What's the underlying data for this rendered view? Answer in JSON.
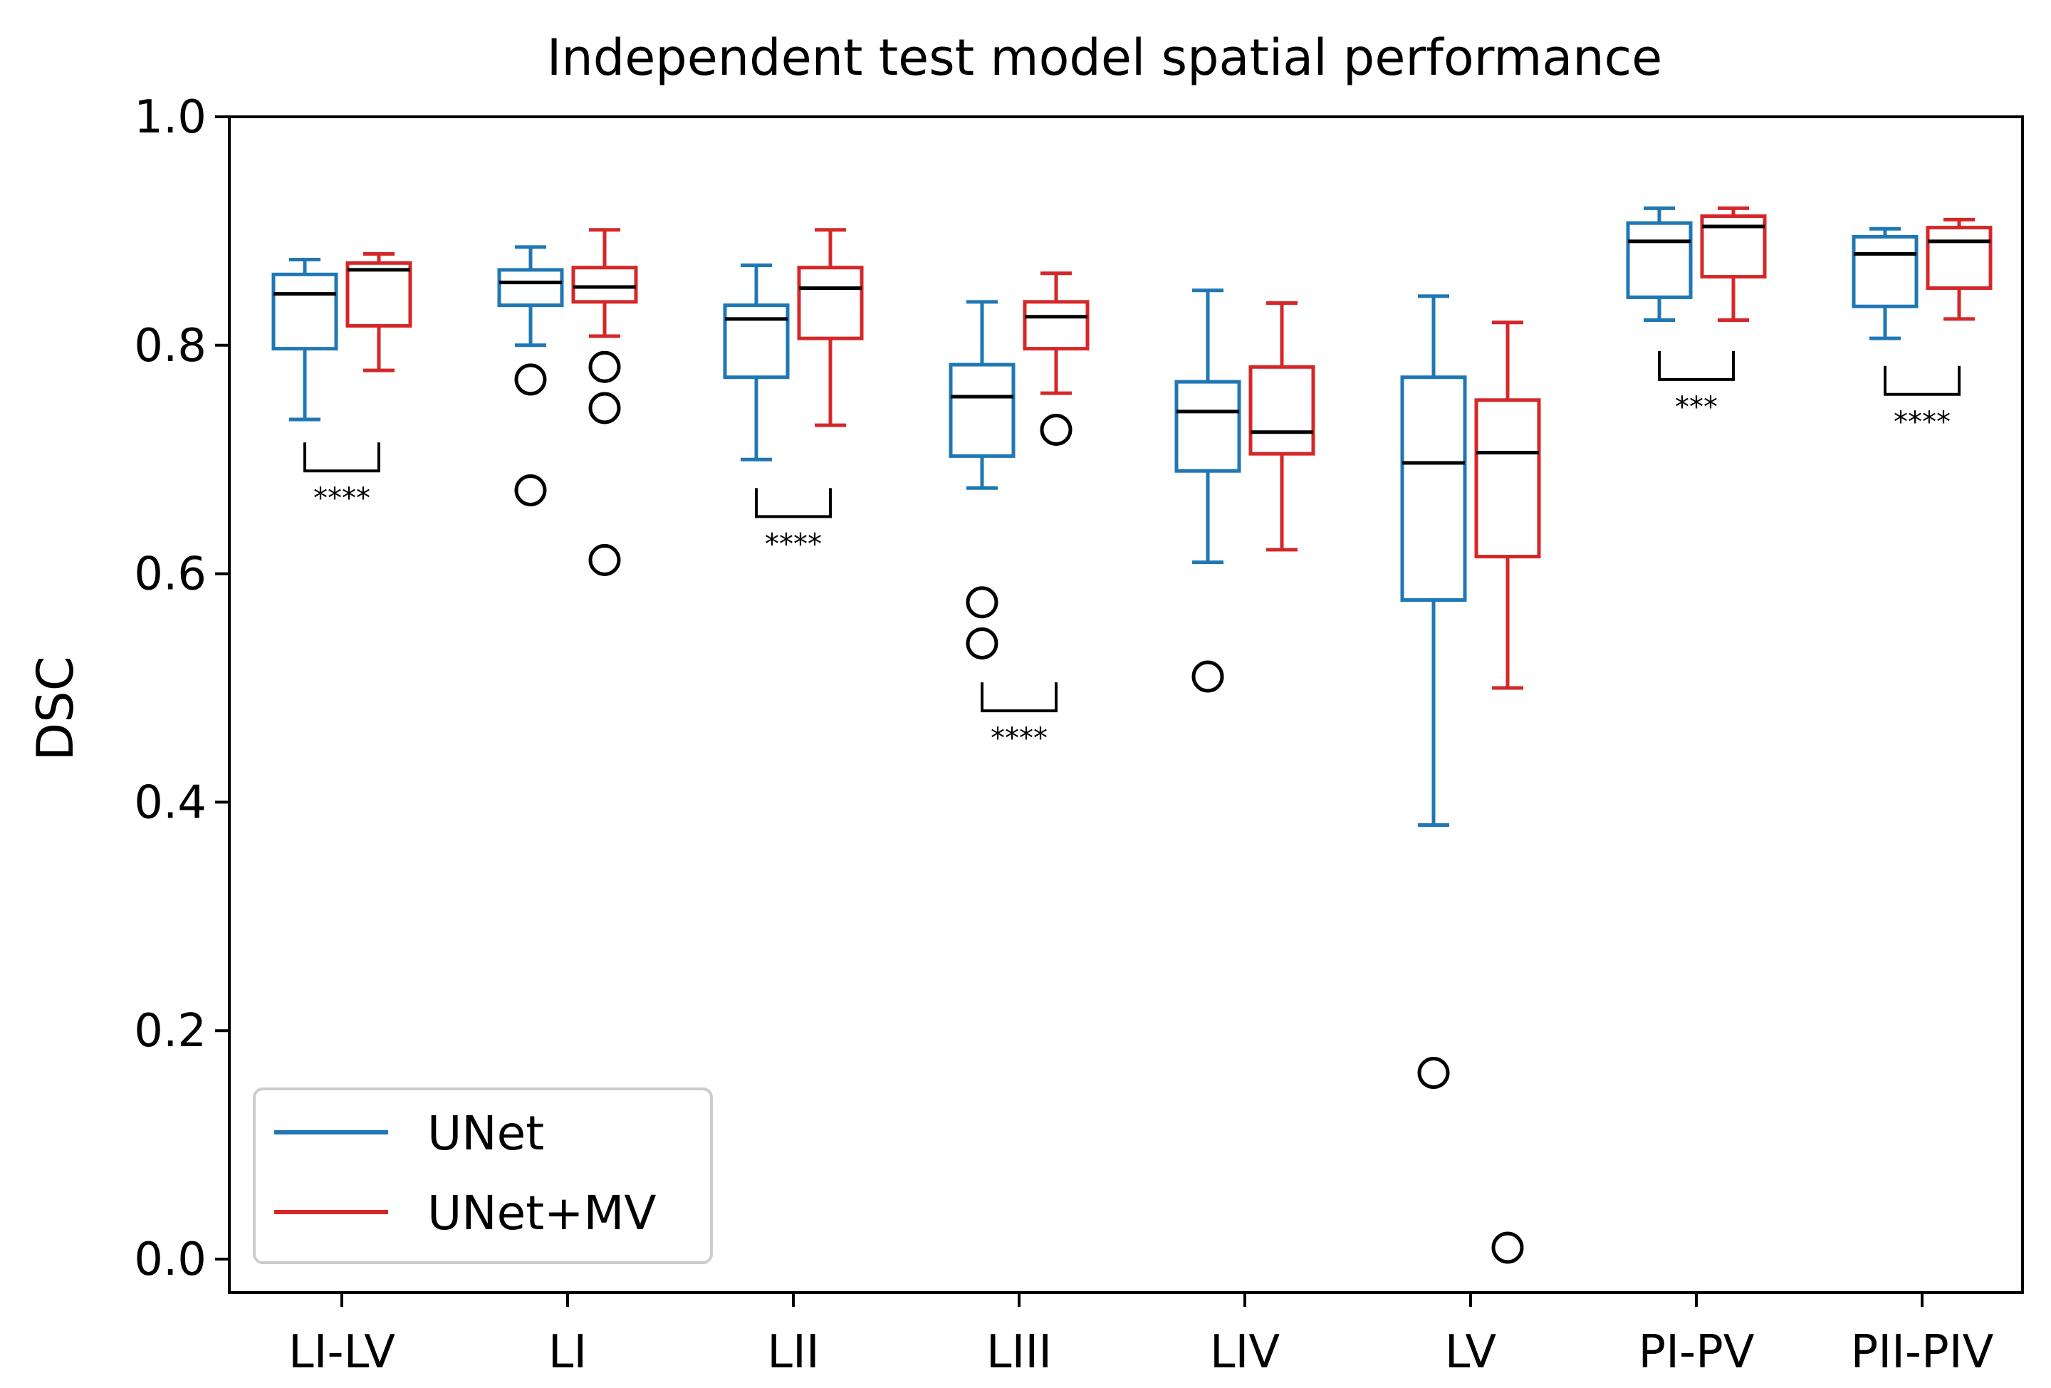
{
  "chart_data": {
    "type": "box",
    "title": "Independent test model spatial performance",
    "xlabel": "",
    "ylabel": "DSC",
    "ylim": [
      0.0,
      1.0
    ],
    "yticks": [
      0.0,
      0.2,
      0.4,
      0.6,
      0.8,
      1.0
    ],
    "ytick_labels": [
      "0.0",
      "0.2",
      "0.4",
      "0.6",
      "0.8",
      "1.0"
    ],
    "categories": [
      "LI-LV",
      "LI",
      "LII",
      "LIII",
      "LIV",
      "LV",
      "PI-PV",
      "PII-PIV"
    ],
    "legend": {
      "position": "lower-left",
      "entries": [
        "UNet",
        "UNet+MV"
      ]
    },
    "colors": {
      "UNet": "#1f77b4",
      "UNet+MV": "#d62728",
      "median": "#000000",
      "flier": "#000000"
    },
    "series": [
      {
        "name": "UNet",
        "boxes": [
          {
            "whislo": 0.735,
            "q1": 0.797,
            "med": 0.845,
            "q3": 0.862,
            "whishi": 0.875,
            "fliers": []
          },
          {
            "whislo": 0.8,
            "q1": 0.835,
            "med": 0.855,
            "q3": 0.866,
            "whishi": 0.886,
            "fliers": [
              0.77,
              0.673
            ]
          },
          {
            "whislo": 0.7,
            "q1": 0.772,
            "med": 0.823,
            "q3": 0.835,
            "whishi": 0.87,
            "fliers": []
          },
          {
            "whislo": 0.675,
            "q1": 0.703,
            "med": 0.755,
            "q3": 0.783,
            "whishi": 0.838,
            "fliers": [
              0.575,
              0.539
            ]
          },
          {
            "whislo": 0.61,
            "q1": 0.69,
            "med": 0.742,
            "q3": 0.768,
            "whishi": 0.848,
            "fliers": [
              0.51
            ]
          },
          {
            "whislo": 0.38,
            "q1": 0.577,
            "med": 0.697,
            "q3": 0.772,
            "whishi": 0.843,
            "fliers": [
              0.163
            ]
          },
          {
            "whislo": 0.822,
            "q1": 0.842,
            "med": 0.891,
            "q3": 0.907,
            "whishi": 0.92,
            "fliers": []
          },
          {
            "whislo": 0.806,
            "q1": 0.834,
            "med": 0.88,
            "q3": 0.895,
            "whishi": 0.902,
            "fliers": []
          }
        ]
      },
      {
        "name": "UNet+MV",
        "boxes": [
          {
            "whislo": 0.778,
            "q1": 0.817,
            "med": 0.866,
            "q3": 0.872,
            "whishi": 0.88,
            "fliers": []
          },
          {
            "whislo": 0.808,
            "q1": 0.838,
            "med": 0.851,
            "q3": 0.868,
            "whishi": 0.901,
            "fliers": [
              0.781,
              0.745,
              0.612
            ]
          },
          {
            "whislo": 0.73,
            "q1": 0.806,
            "med": 0.85,
            "q3": 0.868,
            "whishi": 0.901,
            "fliers": []
          },
          {
            "whislo": 0.758,
            "q1": 0.797,
            "med": 0.825,
            "q3": 0.838,
            "whishi": 0.863,
            "fliers": [
              0.726
            ]
          },
          {
            "whislo": 0.621,
            "q1": 0.705,
            "med": 0.724,
            "q3": 0.781,
            "whishi": 0.837,
            "fliers": []
          },
          {
            "whislo": 0.5,
            "q1": 0.615,
            "med": 0.706,
            "q3": 0.752,
            "whishi": 0.82,
            "fliers": [
              0.01
            ]
          },
          {
            "whislo": 0.822,
            "q1": 0.86,
            "med": 0.904,
            "q3": 0.913,
            "whishi": 0.92,
            "fliers": []
          },
          {
            "whislo": 0.823,
            "q1": 0.85,
            "med": 0.891,
            "q3": 0.903,
            "whishi": 0.91,
            "fliers": []
          }
        ]
      }
    ],
    "significance": [
      {
        "category": "LI-LV",
        "label": "****",
        "y": 0.69
      },
      {
        "category": "LII",
        "label": "****",
        "y": 0.65
      },
      {
        "category": "LIII",
        "label": "****",
        "y": 0.48
      },
      {
        "category": "PI-PV",
        "label": "***",
        "y": 0.77
      },
      {
        "category": "PII-PIV",
        "label": "****",
        "y": 0.757
      }
    ]
  }
}
